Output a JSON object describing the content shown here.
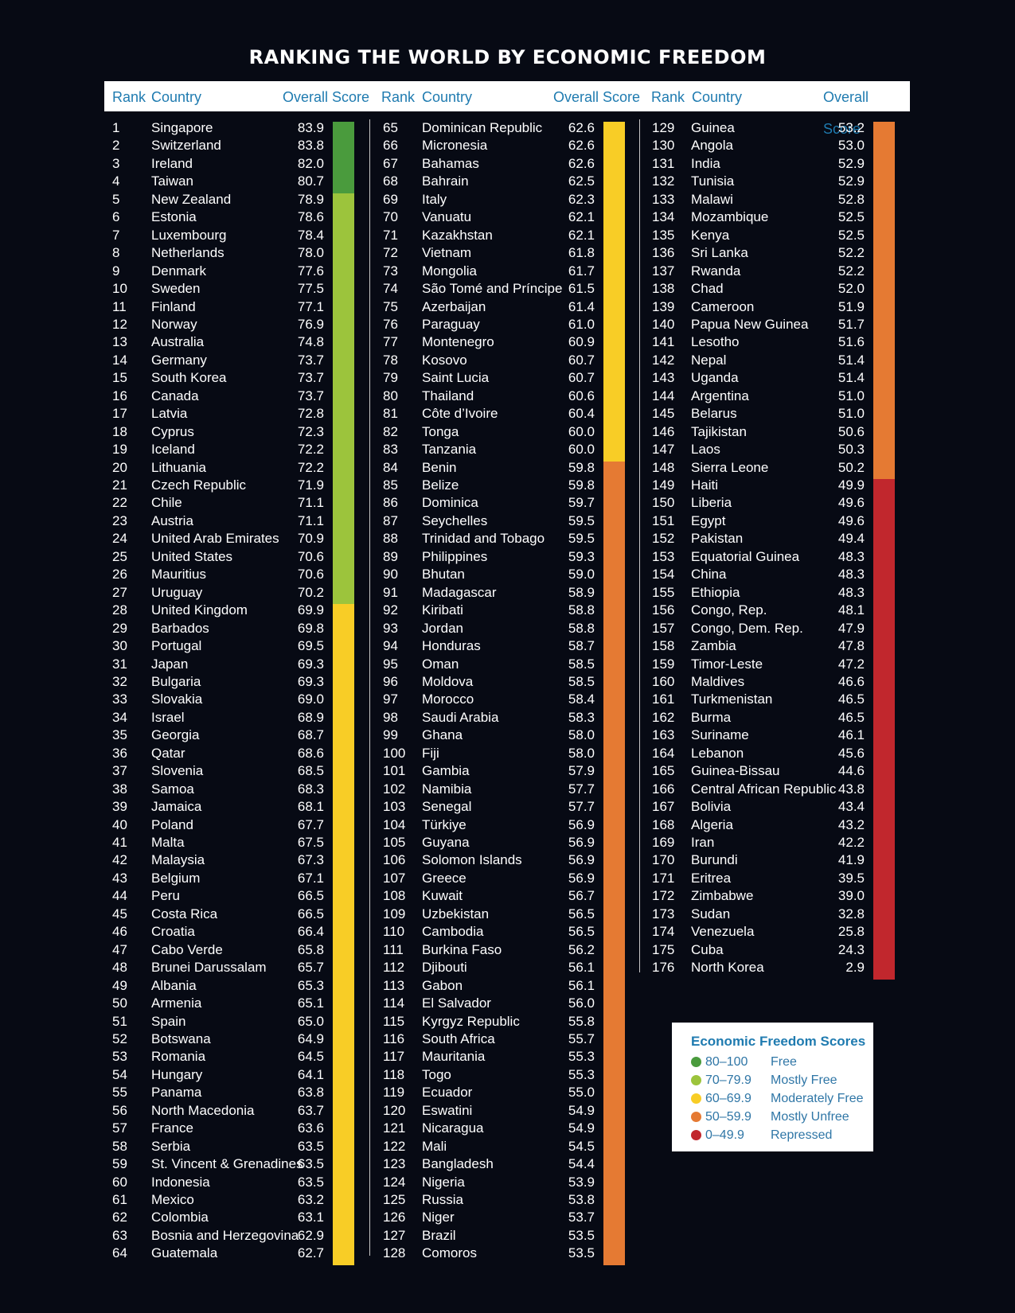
{
  "title": "RANKING THE WORLD BY ECONOMIC FREEDOM",
  "headers": {
    "rank": "Rank",
    "country": "Country",
    "score": "Overall Score"
  },
  "legend": {
    "title": "Economic Freedom Scores",
    "items": [
      {
        "range": "80–100",
        "label": "Free",
        "color": "#4a9b3d"
      },
      {
        "range": "70–79.9",
        "label": "Mostly Free",
        "color": "#9cc43c"
      },
      {
        "range": "60–69.9",
        "label": "Moderately Free",
        "color": "#f8cd26"
      },
      {
        "range": "50–59.9",
        "label": "Mostly Unfree",
        "color": "#e57a33"
      },
      {
        "range": "0–49.9",
        "label": "Repressed",
        "color": "#c1272d"
      }
    ]
  },
  "chart_data": {
    "type": "table",
    "title": "RANKING THE WORLD BY ECONOMIC FREEDOM",
    "columns": [
      "Rank",
      "Country",
      "Overall Score"
    ],
    "categories_legend": [
      {
        "range": [
          80,
          100
        ],
        "label": "Free",
        "color": "#4a9b3d"
      },
      {
        "range": [
          70,
          79.9
        ],
        "label": "Mostly Free",
        "color": "#9cc43c"
      },
      {
        "range": [
          60,
          69.9
        ],
        "label": "Moderately Free",
        "color": "#f8cd26"
      },
      {
        "range": [
          50,
          59.9
        ],
        "label": "Mostly Unfree",
        "color": "#e57a33"
      },
      {
        "range": [
          0,
          49.9
        ],
        "label": "Repressed",
        "color": "#c1272d"
      }
    ],
    "rows": [
      [
        1,
        "Singapore",
        "83.9"
      ],
      [
        2,
        "Switzerland",
        "83.8"
      ],
      [
        3,
        "Ireland",
        "82.0"
      ],
      [
        4,
        "Taiwan",
        "80.7"
      ],
      [
        5,
        "New Zealand",
        "78.9"
      ],
      [
        6,
        "Estonia",
        "78.6"
      ],
      [
        7,
        "Luxembourg",
        "78.4"
      ],
      [
        8,
        "Netherlands",
        "78.0"
      ],
      [
        9,
        "Denmark",
        "77.6"
      ],
      [
        10,
        "Sweden",
        "77.5"
      ],
      [
        11,
        "Finland",
        "77.1"
      ],
      [
        12,
        "Norway",
        "76.9"
      ],
      [
        13,
        "Australia",
        "74.8"
      ],
      [
        14,
        "Germany",
        "73.7"
      ],
      [
        15,
        "South Korea",
        "73.7"
      ],
      [
        16,
        "Canada",
        "73.7"
      ],
      [
        17,
        "Latvia",
        "72.8"
      ],
      [
        18,
        "Cyprus",
        "72.3"
      ],
      [
        19,
        "Iceland",
        "72.2"
      ],
      [
        20,
        "Lithuania",
        "72.2"
      ],
      [
        21,
        "Czech Republic",
        "71.9"
      ],
      [
        22,
        "Chile",
        "71.1"
      ],
      [
        23,
        "Austria",
        "71.1"
      ],
      [
        24,
        "United Arab Emirates",
        "70.9"
      ],
      [
        25,
        "United States",
        "70.6"
      ],
      [
        26,
        "Mauritius",
        "70.6"
      ],
      [
        27,
        "Uruguay",
        "70.2"
      ],
      [
        28,
        "United Kingdom",
        "69.9"
      ],
      [
        29,
        "Barbados",
        "69.8"
      ],
      [
        30,
        "Portugal",
        "69.5"
      ],
      [
        31,
        "Japan",
        "69.3"
      ],
      [
        32,
        "Bulgaria",
        "69.3"
      ],
      [
        33,
        "Slovakia",
        "69.0"
      ],
      [
        34,
        "Israel",
        "68.9"
      ],
      [
        35,
        "Georgia",
        "68.7"
      ],
      [
        36,
        "Qatar",
        "68.6"
      ],
      [
        37,
        "Slovenia",
        "68.5"
      ],
      [
        38,
        "Samoa",
        "68.3"
      ],
      [
        39,
        "Jamaica",
        "68.1"
      ],
      [
        40,
        "Poland",
        "67.7"
      ],
      [
        41,
        "Malta",
        "67.5"
      ],
      [
        42,
        "Malaysia",
        "67.3"
      ],
      [
        43,
        "Belgium",
        "67.1"
      ],
      [
        44,
        "Peru",
        "66.5"
      ],
      [
        45,
        "Costa Rica",
        "66.5"
      ],
      [
        46,
        "Croatia",
        "66.4"
      ],
      [
        47,
        "Cabo Verde",
        "65.8"
      ],
      [
        48,
        "Brunei Darussalam",
        "65.7"
      ],
      [
        49,
        "Albania",
        "65.3"
      ],
      [
        50,
        "Armenia",
        "65.1"
      ],
      [
        51,
        "Spain",
        "65.0"
      ],
      [
        52,
        "Botswana",
        "64.9"
      ],
      [
        53,
        "Romania",
        "64.5"
      ],
      [
        54,
        "Hungary",
        "64.1"
      ],
      [
        55,
        "Panama",
        "63.8"
      ],
      [
        56,
        "North Macedonia",
        "63.7"
      ],
      [
        57,
        "France",
        "63.6"
      ],
      [
        58,
        "Serbia",
        "63.5"
      ],
      [
        59,
        "St. Vincent & Grenadines",
        "63.5"
      ],
      [
        60,
        "Indonesia",
        "63.5"
      ],
      [
        61,
        "Mexico",
        "63.2"
      ],
      [
        62,
        "Colombia",
        "63.1"
      ],
      [
        63,
        "Bosnia and Herzegovina",
        "62.9"
      ],
      [
        64,
        "Guatemala",
        "62.7"
      ],
      [
        65,
        "Dominican Republic",
        "62.6"
      ],
      [
        66,
        "Micronesia",
        "62.6"
      ],
      [
        67,
        "Bahamas",
        "62.6"
      ],
      [
        68,
        "Bahrain",
        "62.5"
      ],
      [
        69,
        "Italy",
        "62.3"
      ],
      [
        70,
        "Vanuatu",
        "62.1"
      ],
      [
        71,
        "Kazakhstan",
        "62.1"
      ],
      [
        72,
        "Vietnam",
        "61.8"
      ],
      [
        73,
        "Mongolia",
        "61.7"
      ],
      [
        74,
        "São Tomé and Príncipe",
        "61.5"
      ],
      [
        75,
        "Azerbaijan",
        "61.4"
      ],
      [
        76,
        "Paraguay",
        "61.0"
      ],
      [
        77,
        "Montenegro",
        "60.9"
      ],
      [
        78,
        "Kosovo",
        "60.7"
      ],
      [
        79,
        "Saint Lucia",
        "60.7"
      ],
      [
        80,
        "Thailand",
        "60.6"
      ],
      [
        81,
        "Côte d’Ivoire",
        "60.4"
      ],
      [
        82,
        "Tonga",
        "60.0"
      ],
      [
        83,
        "Tanzania",
        "60.0"
      ],
      [
        84,
        "Benin",
        "59.8"
      ],
      [
        85,
        "Belize",
        "59.8"
      ],
      [
        86,
        "Dominica",
        "59.7"
      ],
      [
        87,
        "Seychelles",
        "59.5"
      ],
      [
        88,
        "Trinidad and Tobago",
        "59.5"
      ],
      [
        89,
        "Philippines",
        "59.3"
      ],
      [
        90,
        "Bhutan",
        "59.0"
      ],
      [
        91,
        "Madagascar",
        "58.9"
      ],
      [
        92,
        "Kiribati",
        "58.8"
      ],
      [
        93,
        "Jordan",
        "58.8"
      ],
      [
        94,
        "Honduras",
        "58.7"
      ],
      [
        95,
        "Oman",
        "58.5"
      ],
      [
        96,
        "Moldova",
        "58.5"
      ],
      [
        97,
        "Morocco",
        "58.4"
      ],
      [
        98,
        "Saudi Arabia",
        "58.3"
      ],
      [
        99,
        "Ghana",
        "58.0"
      ],
      [
        100,
        "Fiji",
        "58.0"
      ],
      [
        101,
        "Gambia",
        "57.9"
      ],
      [
        102,
        "Namibia",
        "57.7"
      ],
      [
        103,
        "Senegal",
        "57.7"
      ],
      [
        104,
        "Türkiye",
        "56.9"
      ],
      [
        105,
        "Guyana",
        "56.9"
      ],
      [
        106,
        "Solomon Islands",
        "56.9"
      ],
      [
        107,
        "Greece",
        "56.9"
      ],
      [
        108,
        "Kuwait",
        "56.7"
      ],
      [
        109,
        "Uzbekistan",
        "56.5"
      ],
      [
        110,
        "Cambodia",
        "56.5"
      ],
      [
        111,
        "Burkina Faso",
        "56.2"
      ],
      [
        112,
        "Djibouti",
        "56.1"
      ],
      [
        113,
        "Gabon",
        "56.1"
      ],
      [
        114,
        "El Salvador",
        "56.0"
      ],
      [
        115,
        "Kyrgyz Republic",
        "55.8"
      ],
      [
        116,
        "South Africa",
        "55.7"
      ],
      [
        117,
        "Mauritania",
        "55.3"
      ],
      [
        118,
        "Togo",
        "55.3"
      ],
      [
        119,
        "Ecuador",
        "55.0"
      ],
      [
        120,
        "Eswatini",
        "54.9"
      ],
      [
        121,
        "Nicaragua",
        "54.9"
      ],
      [
        122,
        "Mali",
        "54.5"
      ],
      [
        123,
        "Bangladesh",
        "54.4"
      ],
      [
        124,
        "Nigeria",
        "53.9"
      ],
      [
        125,
        "Russia",
        "53.8"
      ],
      [
        126,
        "Niger",
        "53.7"
      ],
      [
        127,
        "Brazil",
        "53.5"
      ],
      [
        128,
        "Comoros",
        "53.5"
      ],
      [
        129,
        "Guinea",
        "53.2"
      ],
      [
        130,
        "Angola",
        "53.0"
      ],
      [
        131,
        "India",
        "52.9"
      ],
      [
        132,
        "Tunisia",
        "52.9"
      ],
      [
        133,
        "Malawi",
        "52.8"
      ],
      [
        134,
        "Mozambique",
        "52.5"
      ],
      [
        135,
        "Kenya",
        "52.5"
      ],
      [
        136,
        "Sri Lanka",
        "52.2"
      ],
      [
        137,
        "Rwanda",
        "52.2"
      ],
      [
        138,
        "Chad",
        "52.0"
      ],
      [
        139,
        "Cameroon",
        "51.9"
      ],
      [
        140,
        "Papua New Guinea",
        "51.7"
      ],
      [
        141,
        "Lesotho",
        "51.6"
      ],
      [
        142,
        "Nepal",
        "51.4"
      ],
      [
        143,
        "Uganda",
        "51.4"
      ],
      [
        144,
        "Argentina",
        "51.0"
      ],
      [
        145,
        "Belarus",
        "51.0"
      ],
      [
        146,
        "Tajikistan",
        "50.6"
      ],
      [
        147,
        "Laos",
        "50.3"
      ],
      [
        148,
        "Sierra Leone",
        "50.2"
      ],
      [
        149,
        "Haiti",
        "49.9"
      ],
      [
        150,
        "Liberia",
        "49.6"
      ],
      [
        151,
        "Egypt",
        "49.6"
      ],
      [
        152,
        "Pakistan",
        "49.4"
      ],
      [
        153,
        "Equatorial Guinea",
        "48.3"
      ],
      [
        154,
        "China",
        "48.3"
      ],
      [
        155,
        "Ethiopia",
        "48.3"
      ],
      [
        156,
        "Congo, Rep.",
        "48.1"
      ],
      [
        157,
        "Congo, Dem. Rep.",
        "47.9"
      ],
      [
        158,
        "Zambia",
        "47.8"
      ],
      [
        159,
        "Timor-Leste",
        "47.2"
      ],
      [
        160,
        "Maldives",
        "46.6"
      ],
      [
        161,
        "Turkmenistan",
        "46.5"
      ],
      [
        162,
        "Burma",
        "46.5"
      ],
      [
        163,
        "Suriname",
        "46.1"
      ],
      [
        164,
        "Lebanon",
        "45.6"
      ],
      [
        165,
        "Guinea-Bissau",
        "44.6"
      ],
      [
        166,
        "Central African Republic",
        "43.8"
      ],
      [
        167,
        "Bolivia",
        "43.4"
      ],
      [
        168,
        "Algeria",
        "43.2"
      ],
      [
        169,
        "Iran",
        "42.2"
      ],
      [
        170,
        "Burundi",
        "41.9"
      ],
      [
        171,
        "Eritrea",
        "39.5"
      ],
      [
        172,
        "Zimbabwe",
        "39.0"
      ],
      [
        173,
        "Sudan",
        "32.8"
      ],
      [
        174,
        "Venezuela",
        "25.8"
      ],
      [
        175,
        "Cuba",
        "24.3"
      ],
      [
        176,
        "North Korea",
        "2.9"
      ]
    ]
  }
}
